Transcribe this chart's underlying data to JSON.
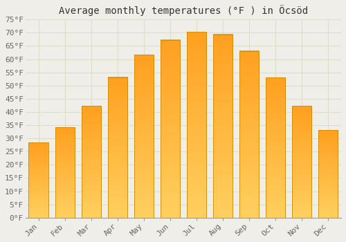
{
  "title": "Average monthly temperatures (°F ) in Öcsöd",
  "months": [
    "Jan",
    "Feb",
    "Mar",
    "Apr",
    "May",
    "Jun",
    "Jul",
    "Aug",
    "Sep",
    "Oct",
    "Nov",
    "Dec"
  ],
  "values": [
    28.4,
    34.2,
    42.3,
    53.2,
    61.7,
    67.3,
    70.3,
    69.4,
    63.1,
    53.1,
    42.3,
    33.1
  ],
  "bar_color_bottom": "#FFA020",
  "bar_color_top": "#FFD060",
  "bar_edge_color": "#CC8800",
  "background_color": "#F0EEE8",
  "plot_bg_color": "#F0EEE8",
  "grid_color": "#DDDDCC",
  "ylim": [
    0,
    75
  ],
  "yticks": [
    0,
    5,
    10,
    15,
    20,
    25,
    30,
    35,
    40,
    45,
    50,
    55,
    60,
    65,
    70,
    75
  ],
  "title_fontsize": 10,
  "tick_fontsize": 8,
  "font_family": "monospace",
  "bar_width": 0.75
}
